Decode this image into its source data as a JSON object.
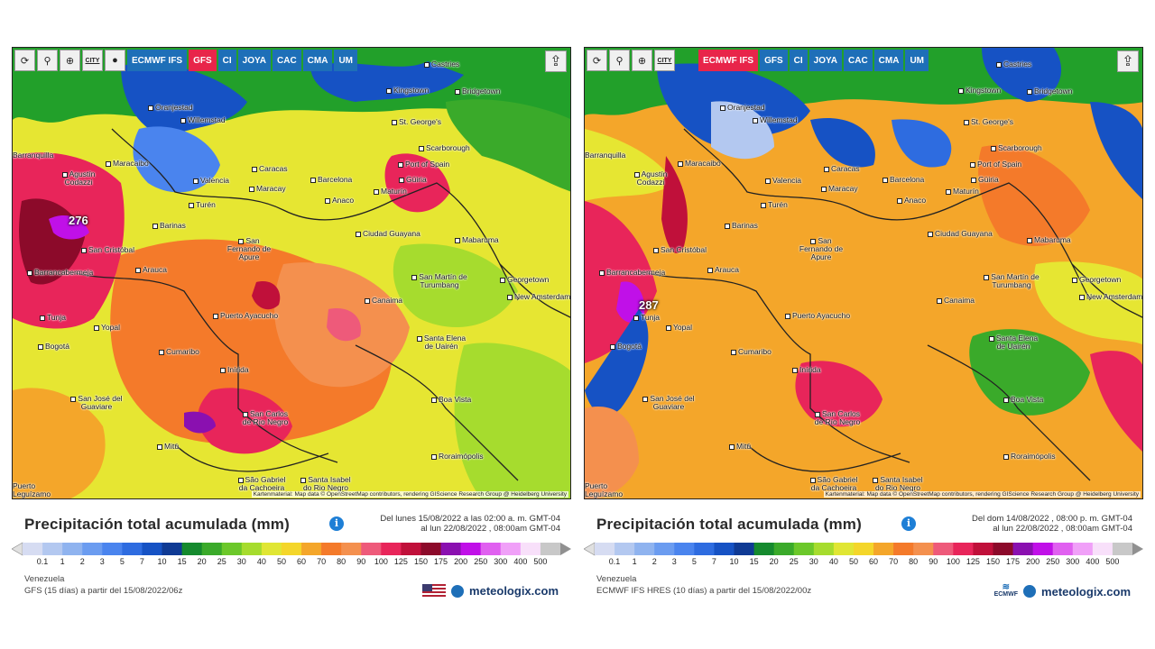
{
  "left": {
    "toolbar": {
      "tools": [
        "refresh-icon",
        "location-pin-icon",
        "zoom-icon",
        "CITY",
        "dot-icon"
      ],
      "models": [
        {
          "label": "ECMWF IFS",
          "active": false
        },
        {
          "label": "GFS",
          "active": true
        },
        {
          "label": "CI",
          "active": false
        },
        {
          "label": "JOYA",
          "active": false
        },
        {
          "label": "CAC",
          "active": false
        },
        {
          "label": "CMA",
          "active": false
        },
        {
          "label": "UM",
          "active": false
        }
      ]
    },
    "max_value": "276",
    "attribution": "Kartenmaterial: Map data © OpenStreetMap contributors, rendering GIScience Research Group @ Heidelberg University",
    "title": "Precipitación total acumulada (mm)",
    "dates_line1": "Del lunes 15/08/2022 a las 02:00 a. m. GMT-04",
    "dates_line2": "al lun 22/08/2022 , 08:00am GMT-04",
    "region": "Venezuela",
    "model_text": "GFS (15 días) a partir del 15/08/2022/06z",
    "brand": "meteologix.com"
  },
  "right": {
    "toolbar": {
      "tools": [
        "refresh-icon",
        "location-pin-icon",
        "zoom-icon",
        "CITY"
      ],
      "models": [
        {
          "label": "ECMWF IFS",
          "active": true
        },
        {
          "label": "GFS",
          "active": false
        },
        {
          "label": "CI",
          "active": false
        },
        {
          "label": "JOYA",
          "active": false
        },
        {
          "label": "CAC",
          "active": false
        },
        {
          "label": "CMA",
          "active": false
        },
        {
          "label": "UM",
          "active": false
        }
      ]
    },
    "max_value": "287",
    "attribution": "Kartenmaterial: Map data © OpenStreetMap contributors, rendering GIScience Research Group @ Heidelberg University",
    "title": "Precipitación total acumulada (mm)",
    "dates_line1": "Del dom 14/08/2022 , 08:00 p. m. GMT-04",
    "dates_line2": "al lun 22/08/2022 , 08:00am GMT-04",
    "region": "Venezuela",
    "model_text": "ECMWF IFS HRES (10 días) a partir del 15/08/2022/00z",
    "brand": "meteologix.com",
    "ecmwf_logo": "ECMWF"
  },
  "cities": [
    "Castries",
    "Kingstown",
    "Bridgetown",
    "Oranjestad",
    "Willemstad",
    "St. George's",
    "Scarborough",
    "Port of Spain",
    "Barranquilla",
    "Maracaibo",
    "Agustín Codazzi",
    "Caracas",
    "Valencia",
    "Maracay",
    "Barcelona",
    "Güiria",
    "Maturín",
    "Anaco",
    "Barinas",
    "Turén",
    "Ciudad Guayana",
    "Mabaruma",
    "San Cristóbal",
    "San Fernando de Apure",
    "Barrancabermeja",
    "Arauca",
    "San Martín de Turumbang",
    "Georgetown",
    "New Amsterdam",
    "Canaima",
    "Puerto Ayacucho",
    "Tunja",
    "Yopal",
    "Bogotá",
    "Santa Elena de Uairén",
    "Cumaribo",
    "Inírida",
    "Boa Vista",
    "San José del Guaviare",
    "San Carlos de Río Negro",
    "Mitú",
    "Roraimópolis",
    "São Gabriel da Cachoeira",
    "Santa Isabel do Rio Negro",
    "Puerto Leguízamo"
  ],
  "scale": {
    "values": [
      "0.1",
      "1",
      "2",
      "3",
      "5",
      "7",
      "10",
      "15",
      "20",
      "25",
      "30",
      "40",
      "50",
      "60",
      "70",
      "80",
      "90",
      "100",
      "125",
      "150",
      "175",
      "200",
      "250",
      "300",
      "400",
      "500"
    ],
    "colors": [
      "#d6dcf2",
      "#b3c8f0",
      "#8fb3ef",
      "#6b9cf0",
      "#4a84ee",
      "#2e6ce0",
      "#1652c4",
      "#0f3a94",
      "#158a2e",
      "#3aaa2a",
      "#6cc82a",
      "#a6dc2e",
      "#e0e634",
      "#f4d62a",
      "#f4a62a",
      "#f47a2a",
      "#f4904e",
      "#ee5a7a",
      "#e8255a",
      "#c0103a",
      "#8c0a2a",
      "#8a10b0",
      "#c010e8",
      "#e060f0",
      "#f0a0f8",
      "#f8e0fa",
      "#c8c8c8"
    ]
  }
}
